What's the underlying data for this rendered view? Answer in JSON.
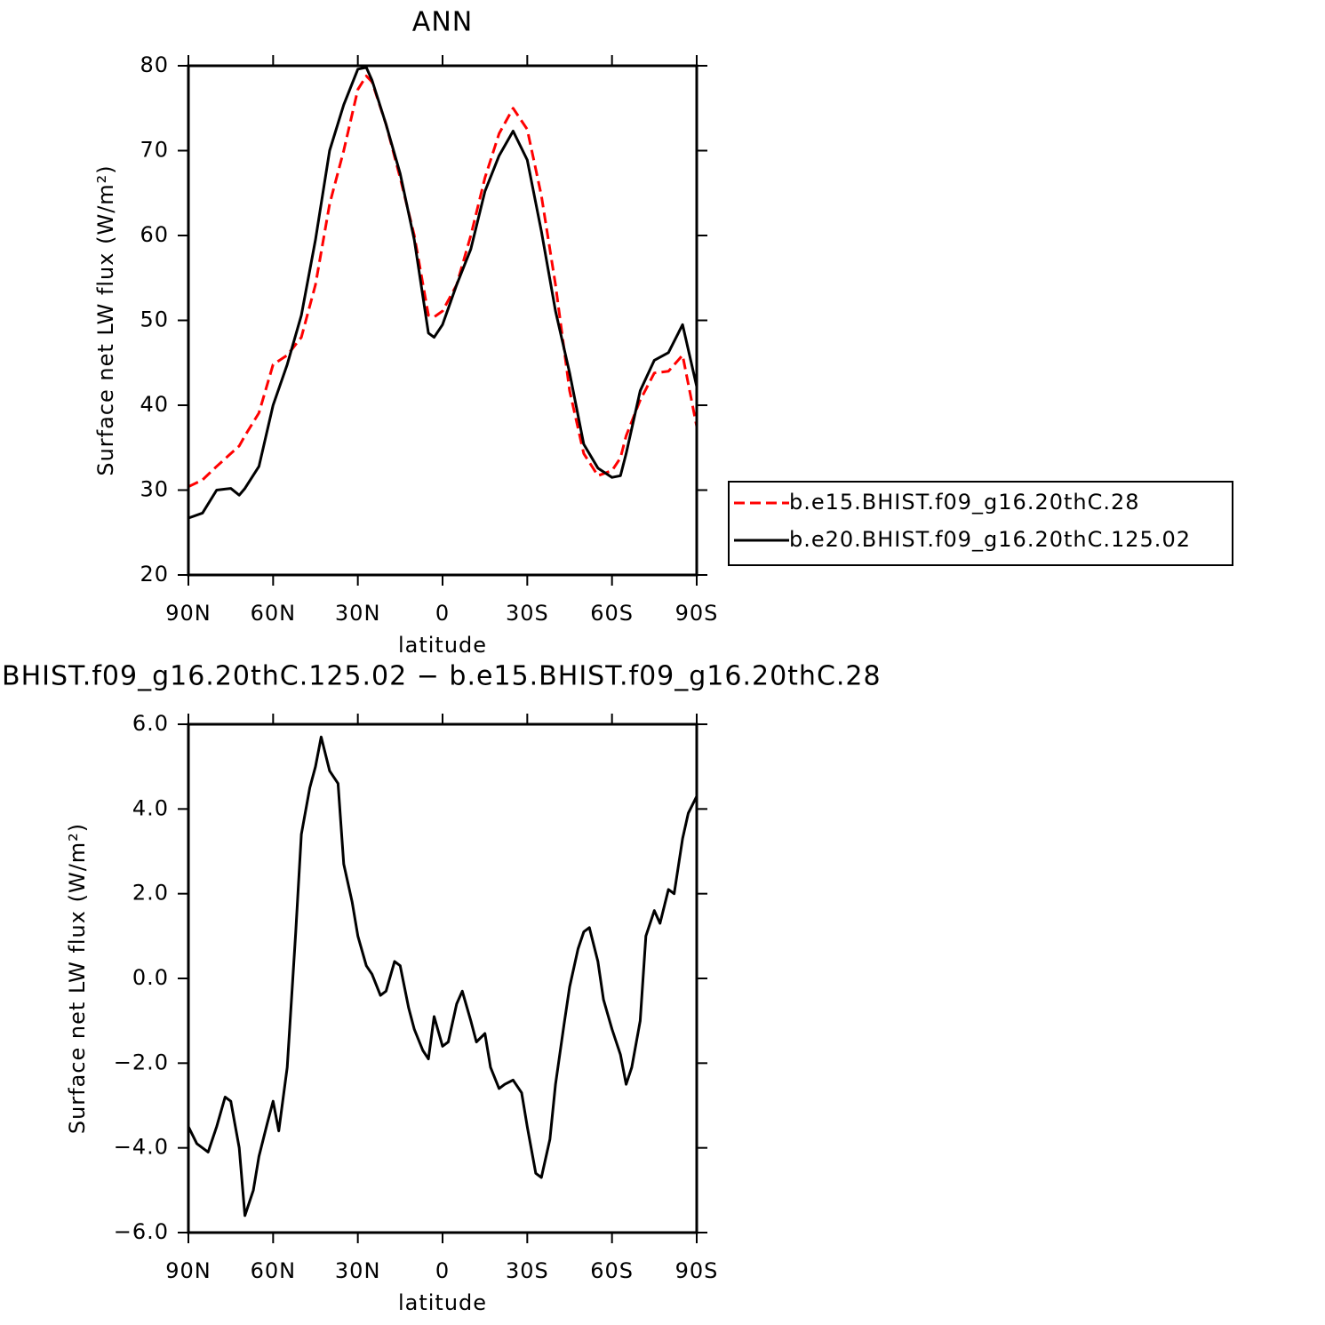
{
  "chart_data": [
    {
      "type": "line",
      "title": "ANN",
      "xlabel": "latitude",
      "ylabel": "Surface net LW flux (W/m²)",
      "x": [
        90,
        85,
        80,
        75,
        72,
        70,
        65,
        60,
        55,
        50,
        45,
        40,
        35,
        30,
        27,
        25,
        20,
        15,
        10,
        5,
        3,
        0,
        -5,
        -10,
        -15,
        -20,
        -25,
        -30,
        -35,
        -40,
        -45,
        -50,
        -55,
        -60,
        -63,
        -65,
        -70,
        -75,
        -80,
        -85,
        -90
      ],
      "series": [
        {
          "name": "b.e15.BHIST.f09_g16.20thC.28",
          "color": "#ff0000",
          "linestyle": "dashed",
          "values": [
            30.4,
            31.2,
            32.8,
            34.3,
            35.2,
            36.4,
            39.1,
            44.8,
            45.9,
            48,
            54.2,
            63.7,
            70,
            77.2,
            78.8,
            78.1,
            73.1,
            66.8,
            60,
            50.6,
            50.4,
            51.1,
            54.2,
            60,
            66.8,
            72,
            75,
            72.5,
            64.7,
            54.2,
            41.7,
            34.3,
            31.7,
            32.3,
            33.8,
            36.4,
            40.6,
            43.8,
            44,
            45.9,
            37.5
          ]
        },
        {
          "name": "b.e20.BHIST.f09_g16.20thC.125.02",
          "color": "#000000",
          "linestyle": "solid",
          "values": [
            26.7,
            27.3,
            30.0,
            30.2,
            29.4,
            30.2,
            32.8,
            40,
            44.8,
            50.6,
            59.5,
            70,
            75.4,
            79.6,
            79.8,
            78.3,
            73.1,
            67.3,
            59.5,
            48.5,
            48,
            49.5,
            54.2,
            58.4,
            65.2,
            69.4,
            72.3,
            68.9,
            60.5,
            51.1,
            43.8,
            35.4,
            32.6,
            31.5,
            31.7,
            34.3,
            41.7,
            45.3,
            46.2,
            49.5,
            42.2
          ]
        }
      ],
      "xlim": [
        90,
        -90
      ],
      "xticks": [
        {
          "value": 90,
          "label": "90N"
        },
        {
          "value": 60,
          "label": "60N"
        },
        {
          "value": 30,
          "label": "30N"
        },
        0,
        {
          "value": -30,
          "label": "30S"
        },
        {
          "value": -60,
          "label": "60S"
        },
        {
          "value": -90,
          "label": "90S"
        }
      ],
      "ylim": [
        20,
        80
      ],
      "yticks": [
        20,
        30,
        40,
        50,
        60,
        70,
        80
      ],
      "legend": "right"
    },
    {
      "type": "line",
      "title": "BHIST.f09_g16.20thC.125.02 − b.e15.BHIST.f09_g16.20thC.28",
      "xlabel": "latitude",
      "ylabel": "Surface net LW flux (W/m²)",
      "x": [
        90,
        87,
        83,
        80,
        77,
        75,
        72,
        70,
        67,
        65,
        62,
        60,
        58,
        55,
        52,
        50,
        47,
        45,
        43,
        40,
        37,
        35,
        32,
        30,
        27,
        25,
        22,
        20,
        17,
        15,
        12,
        10,
        7,
        5,
        3,
        0,
        -2,
        -5,
        -7,
        -10,
        -12,
        -15,
        -17,
        -20,
        -22,
        -25,
        -28,
        -30,
        -33,
        -35,
        -38,
        -40,
        -43,
        -45,
        -48,
        -50,
        -52,
        -55,
        -57,
        -60,
        -63,
        -65,
        -67,
        -70,
        -72,
        -75,
        -77,
        -80,
        -82,
        -85,
        -87,
        -90
      ],
      "series": [
        {
          "color": "#000000",
          "linestyle": "solid",
          "values": [
            -3.5,
            -3.9,
            -4.1,
            -3.5,
            -2.8,
            -2.9,
            -4.0,
            -5.6,
            -5.0,
            -4.2,
            -3.4,
            -2.9,
            -3.6,
            -2.1,
            1.1,
            3.4,
            4.5,
            5.0,
            5.7,
            4.9,
            4.6,
            2.7,
            1.8,
            1.0,
            0.3,
            0.1,
            -0.4,
            -0.3,
            0.4,
            0.3,
            -0.7,
            -1.2,
            -1.7,
            -1.9,
            -0.9,
            -1.6,
            -1.5,
            -0.6,
            -0.3,
            -1.0,
            -1.5,
            -1.3,
            -2.1,
            -2.6,
            -2.5,
            -2.4,
            -2.7,
            -3.5,
            -4.6,
            -4.7,
            -3.8,
            -2.5,
            -1.1,
            -0.2,
            0.7,
            1.1,
            1.2,
            0.4,
            -0.5,
            -1.2,
            -1.8,
            -2.5,
            -2.1,
            -1.0,
            1.0,
            1.6,
            1.3,
            2.1,
            2.0,
            3.3,
            3.9,
            4.3
          ]
        }
      ],
      "xlim": [
        90,
        -90
      ],
      "xticks": [
        {
          "value": 90,
          "label": "90N"
        },
        {
          "value": 60,
          "label": "60N"
        },
        {
          "value": 30,
          "label": "30N"
        },
        0,
        {
          "value": -30,
          "label": "30S"
        },
        {
          "value": -60,
          "label": "60S"
        },
        {
          "value": -90,
          "label": "90S"
        }
      ],
      "ylim": [
        -6,
        6
      ],
      "yticks": [
        {
          "value": -6,
          "label": "−6.0"
        },
        {
          "value": -4,
          "label": "−4.0"
        },
        {
          "value": -2,
          "label": "−2.0"
        },
        {
          "value": 0,
          "label": "0.0"
        },
        {
          "value": 2,
          "label": "2.0"
        },
        {
          "value": 4,
          "label": "4.0"
        },
        {
          "value": 6,
          "label": "6.0"
        }
      ]
    }
  ]
}
